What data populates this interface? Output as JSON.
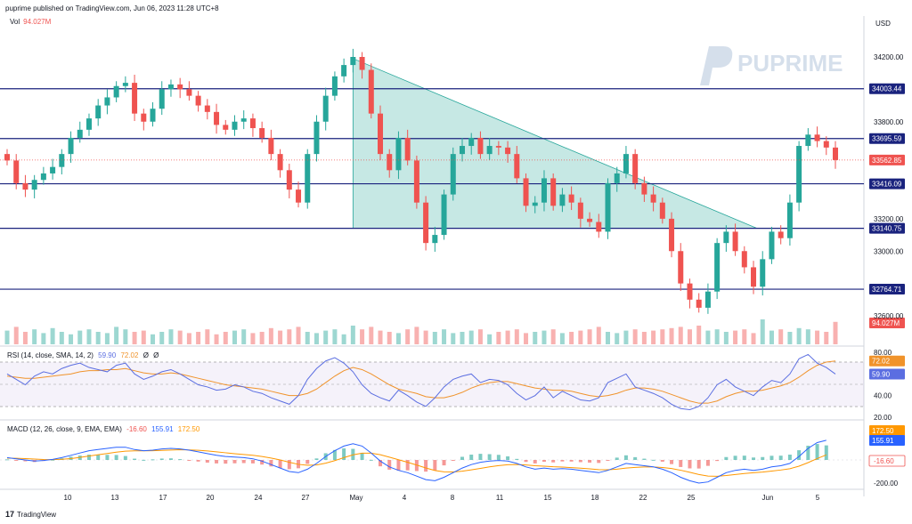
{
  "header": {
    "publisher_line": "puprime published on TradingView.com, Jun 06, 2023 11:28 UTC+8"
  },
  "currency": "USD",
  "watermark": "PUPRIME",
  "footer": {
    "brand": "TradingView"
  },
  "colors": {
    "up": "#26a69a",
    "down": "#ef5350",
    "level": "#1a237e",
    "triangle": "#80cbc4",
    "rsi": "#5b6ee1",
    "rsi_ma": "#f0932b",
    "macd": "#2962ff",
    "signal": "#ff9800"
  },
  "volume": {
    "label": "Vol",
    "value": "94.027M"
  },
  "rsi": {
    "label": "RSI (14, close, SMA, 14, 2)",
    "value": "59.90",
    "ma": "72.02",
    "extra1": "Ø",
    "extra2": "Ø",
    "axis_ticks": [
      "80.00",
      "40.00",
      "20.00"
    ]
  },
  "macd": {
    "label": "MACD (12, 26, close, 9, EMA, EMA)",
    "hist": "-16.60",
    "macd_val": "155.91",
    "signal": "172.50",
    "axis_ticks": [
      "-200.00"
    ]
  },
  "chart_data": {
    "type": "candlestick",
    "symbol": "",
    "price_axis_ticks": [
      34200,
      34000,
      33800,
      33600,
      33400,
      33200,
      33000,
      32800,
      32600
    ],
    "price_axis_labels": [
      "34200.00",
      "34000.00",
      "33800.00",
      "33600.00",
      "33400.00",
      "33200.00",
      "33000.00",
      "32800.00",
      "32600.00"
    ],
    "horizontal_levels": [
      {
        "value": 34003.44,
        "label": "34003.44"
      },
      {
        "value": 33695.59,
        "label": "33695.59"
      },
      {
        "value": 33416.09,
        "label": "33416.09"
      },
      {
        "value": 33140.75,
        "label": "33140.75"
      },
      {
        "value": 32764.71,
        "label": "32764.71"
      }
    ],
    "last_price": {
      "value": 33562.85,
      "label": "33562.85"
    },
    "x_axis_labels": [
      "10",
      "13",
      "17",
      "20",
      "24",
      "27",
      "May",
      "4",
      "8",
      "11",
      "15",
      "18",
      "22",
      "25",
      "Jun",
      "5",
      "8"
    ],
    "triangle": {
      "apex_high": 34190,
      "base": 33140.75
    },
    "close_path": [
      33560,
      33420,
      33380,
      33440,
      33480,
      33520,
      33600,
      33700,
      33750,
      33820,
      33900,
      33950,
      34020,
      34040,
      33850,
      33800,
      33880,
      34000,
      34030,
      34000,
      33960,
      33900,
      33860,
      33780,
      33750,
      33800,
      33820,
      33760,
      33700,
      33600,
      33500,
      33380,
      33300,
      33600,
      33800,
      33960,
      34080,
      34150,
      34200,
      34120,
      33850,
      33600,
      33500,
      33700,
      33560,
      33300,
      33050,
      33100,
      33350,
      33600,
      33650,
      33700,
      33600,
      33650,
      33640,
      33600,
      33450,
      33280,
      33300,
      33450,
      33280,
      33350,
      33300,
      33200,
      33180,
      33120,
      33420,
      33480,
      33600,
      33420,
      33350,
      33300,
      33200,
      33000,
      32800,
      32700,
      32650,
      32750,
      33050,
      33120,
      33000,
      32900,
      32780,
      32950,
      33120,
      33080,
      33300,
      33650,
      33720,
      33680,
      33640,
      33562.85
    ],
    "volume_levels": [
      0.55,
      0.7,
      0.5,
      0.6,
      0.45,
      0.65,
      0.5,
      0.4,
      0.55,
      0.6,
      0.5,
      0.45,
      0.7,
      0.6,
      0.5,
      0.55,
      0.4,
      0.5,
      0.6,
      0.55,
      0.45,
      0.5,
      0.6,
      0.4,
      0.5,
      0.55,
      0.6,
      0.45,
      0.5,
      0.65,
      0.55,
      0.6,
      0.7,
      0.5,
      0.45,
      0.55,
      0.6,
      0.4,
      0.75,
      0.6,
      0.7,
      0.55,
      0.5,
      0.45,
      0.6,
      0.7,
      0.55,
      0.5,
      0.6,
      0.45,
      0.5,
      0.55,
      0.6,
      0.4,
      0.5,
      0.55,
      0.6,
      0.45,
      0.5,
      0.55,
      0.6,
      0.45,
      0.5,
      0.55,
      0.6,
      0.7,
      0.5,
      0.45,
      0.55,
      0.6,
      0.5,
      0.55,
      0.6,
      0.65,
      0.7,
      0.6,
      0.75,
      0.55,
      0.6,
      0.5,
      0.55,
      0.6,
      0.45,
      1.0,
      0.55,
      0.6,
      0.5,
      0.65,
      0.6,
      0.55,
      0.5,
      0.9
    ],
    "rsi_values": [
      60,
      55,
      50,
      58,
      62,
      60,
      65,
      68,
      70,
      66,
      64,
      62,
      68,
      70,
      60,
      55,
      58,
      62,
      64,
      60,
      55,
      50,
      48,
      45,
      46,
      50,
      48,
      44,
      42,
      38,
      35,
      32,
      40,
      55,
      65,
      72,
      75,
      70,
      62,
      50,
      42,
      38,
      35,
      45,
      40,
      34,
      30,
      38,
      48,
      55,
      58,
      60,
      52,
      55,
      54,
      50,
      42,
      36,
      40,
      48,
      38,
      44,
      40,
      36,
      35,
      38,
      52,
      56,
      60,
      48,
      45,
      42,
      38,
      32,
      28,
      27,
      30,
      38,
      50,
      55,
      48,
      44,
      40,
      48,
      54,
      52,
      60,
      74,
      78,
      70,
      66,
      59.9
    ],
    "rsi_ma_values": [
      58,
      57,
      56,
      56,
      57,
      58,
      59,
      60,
      62,
      63,
      63,
      64,
      64,
      65,
      63,
      61,
      60,
      60,
      61,
      60,
      58,
      56,
      54,
      52,
      50,
      49,
      48,
      47,
      46,
      44,
      42,
      40,
      40,
      42,
      46,
      52,
      58,
      63,
      66,
      64,
      60,
      55,
      50,
      46,
      44,
      42,
      39,
      38,
      38,
      40,
      43,
      47,
      50,
      52,
      53,
      53,
      51,
      49,
      47,
      46,
      45,
      45,
      44,
      42,
      40,
      39,
      40,
      42,
      45,
      47,
      47,
      46,
      44,
      41,
      38,
      35,
      33,
      33,
      35,
      39,
      42,
      44,
      44,
      45,
      47,
      49,
      52,
      57,
      63,
      68,
      71,
      72.02
    ],
    "macd_values": [
      20,
      10,
      0,
      -10,
      -5,
      5,
      20,
      40,
      60,
      80,
      90,
      100,
      110,
      110,
      90,
      80,
      85,
      95,
      100,
      95,
      85,
      70,
      55,
      40,
      30,
      25,
      20,
      10,
      -10,
      -40,
      -70,
      -100,
      -110,
      -80,
      -30,
      30,
      80,
      120,
      140,
      120,
      60,
      -10,
      -60,
      -90,
      -110,
      -140,
      -170,
      -180,
      -150,
      -110,
      -70,
      -40,
      -20,
      -10,
      -5,
      -10,
      -30,
      -60,
      -80,
      -70,
      -80,
      -75,
      -80,
      -90,
      -100,
      -110,
      -90,
      -60,
      -30,
      -40,
      -50,
      -60,
      -80,
      -110,
      -150,
      -180,
      -200,
      -190,
      -150,
      -110,
      -90,
      -80,
      -90,
      -80,
      -60,
      -50,
      -30,
      30,
      100,
      150,
      170,
      155.91
    ],
    "signal_values": [
      15,
      14,
      12,
      8,
      4,
      3,
      6,
      12,
      22,
      34,
      45,
      56,
      67,
      76,
      79,
      79,
      80,
      83,
      86,
      88,
      87,
      84,
      78,
      70,
      62,
      54,
      47,
      40,
      30,
      16,
      0,
      -20,
      -38,
      -46,
      -43,
      -28,
      -6,
      20,
      44,
      59,
      59,
      45,
      24,
      2,
      -20,
      -44,
      -69,
      -91,
      -103,
      -104,
      -97,
      -86,
      -73,
      -60,
      -49,
      -41,
      -39,
      -43,
      -50,
      -54,
      -59,
      -62,
      -66,
      -71,
      -77,
      -84,
      -85,
      -80,
      -70,
      -64,
      -61,
      -61,
      -65,
      -74,
      -89,
      -107,
      -126,
      -139,
      -141,
      -135,
      -126,
      -117,
      -111,
      -105,
      -96,
      -87,
      -76,
      -54,
      -23,
      12,
      44,
      172.5
    ]
  }
}
